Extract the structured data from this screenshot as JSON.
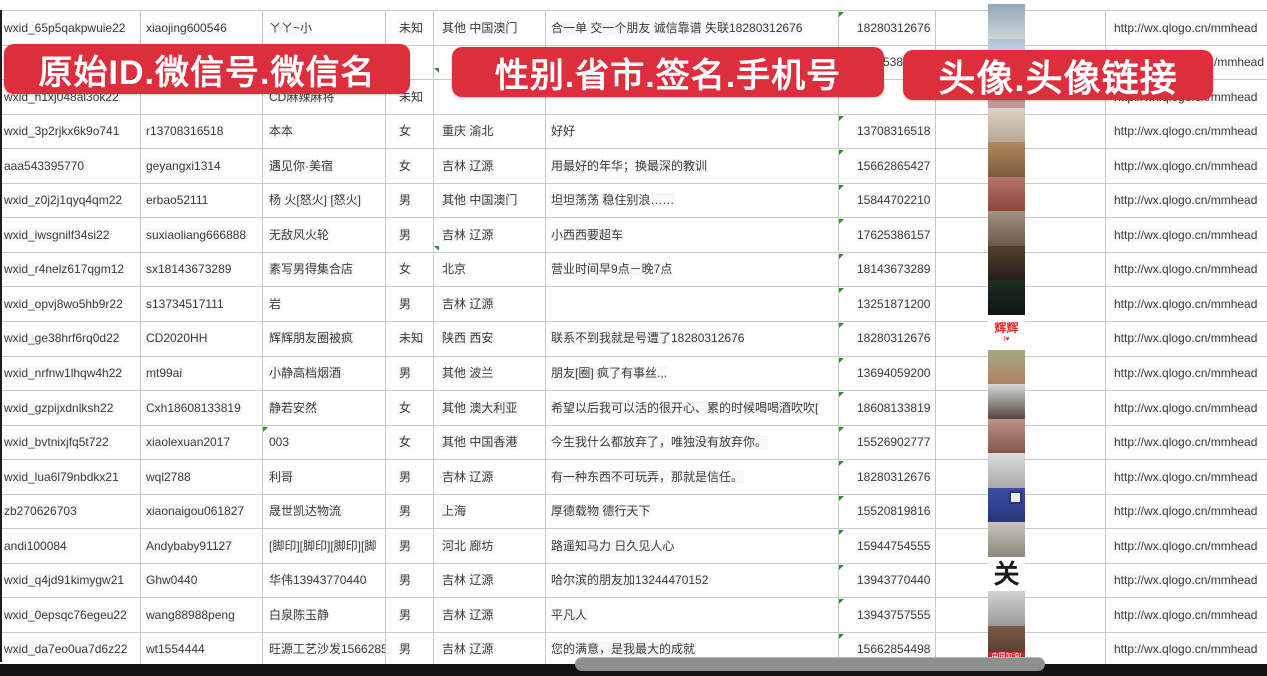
{
  "banners": [
    {
      "text": "原始ID.微信号.微信名"
    },
    {
      "text": "性别.省市.签名.手机号"
    },
    {
      "text": "头像.头像链接"
    }
  ],
  "colors": {
    "banner_red": "#dd2e3e",
    "grid_line": "#c9c9c9",
    "text": "#3a3a3a",
    "indicator_green": "#2e8b2e",
    "scrollbar_track": "#141414",
    "scrollbar_thumb": "#8f8f8f"
  },
  "rows": [
    {
      "original_id": "wxid_65p5qakpwuie22",
      "wechat_id": "xiaojing600546",
      "wechat_name": "ㄚㄚ~小",
      "gender": "未知",
      "region": "其他 中国澳门",
      "signature": "合一单 交一个朋友 诚信靠谱 失联18280312676",
      "phone": "18280312676",
      "phone_tri": true,
      "avatar_link": "http://wx.qlogo.cn/mmhead",
      "avatar": {
        "c1": "#93a7b8",
        "c2": "#cfd5da"
      }
    },
    {
      "original_id": "",
      "wechat_id": "",
      "wechat_name": "",
      "gender": "",
      "region": "",
      "signature": "",
      "phone": "5386",
      "phone_pad": 44,
      "phone_tri": false,
      "avatar_link": "/mmhead",
      "link_pad": 108,
      "avatar": {
        "c1": "#b3c1d8",
        "c2": "#e3e8ef"
      }
    },
    {
      "original_id": "wxid_h1xj048al3ok22",
      "wechat_id": "",
      "wechat_name": "CD麻辣麻将",
      "gender": "未知",
      "region": "",
      "signature": "",
      "phone": "",
      "phone_tri": false,
      "avatar_link": "http://wx.qlogo.cn/mmhead",
      "avatar": {
        "c1": "#d8bdbd",
        "c2": "#bf9494"
      }
    },
    {
      "original_id": "wxid_3p2rjkx6k9o741",
      "wechat_id": "r13708316518",
      "wechat_name": "本本",
      "gender": "女",
      "region": "重庆 渝北",
      "signature": "好好",
      "phone": "13708316518",
      "phone_tri": true,
      "avatar_link": "http://wx.qlogo.cn/mmhead",
      "avatar": {
        "c1": "#d9d2c6",
        "c2": "#b7a896"
      }
    },
    {
      "original_id": "aaa543395770",
      "wechat_id": "geyangxi1314",
      "wechat_name": "遇见你·美宿",
      "gender": "女",
      "region": "吉林 辽源",
      "signature": "用最好的年华；换最深的教训",
      "phone": "15662865427",
      "phone_tri": true,
      "avatar_link": "http://wx.qlogo.cn/mmhead",
      "avatar": {
        "c1": "#b18a5c",
        "c2": "#7d5c3c"
      }
    },
    {
      "original_id": "wxid_z0j2j1qyq4qm22",
      "wechat_id": "erbao52111",
      "wechat_name": "杨 火[怒火] [怒火]",
      "gender": "男",
      "region": "其他 中国澳门",
      "signature": "坦坦荡荡 稳住别浪……",
      "phone": "15844702210",
      "phone_tri": true,
      "avatar_link": "http://wx.qlogo.cn/mmhead",
      "avatar": {
        "c1": "#b5756a",
        "c2": "#8e453c"
      }
    },
    {
      "original_id": "wxid_iwsgnilf34si22",
      "wechat_id": "suxiaoliang666888",
      "wechat_name": "无敌风火轮",
      "gender": "男",
      "region": "吉林 辽源",
      "signature": "小西西要超车",
      "phone": "17625386157",
      "phone_tri": true,
      "avatar_link": "http://wx.qlogo.cn/mmhead",
      "avatar": {
        "c1": "#a29384",
        "c2": "#6b5a4e"
      }
    },
    {
      "original_id": "wxid_r4nelz617qgm12",
      "wechat_id": "sx18143673289",
      "wechat_name": "素写男得集合店",
      "gender": "女",
      "region": "北京",
      "signature": "营业时间早9点－晚7点",
      "phone": "18143673289",
      "phone_tri": true,
      "avatar_link": "http://wx.qlogo.cn/mmhead",
      "avatar": {
        "c1": "#54402f",
        "c2": "#271e19"
      }
    },
    {
      "original_id": "wxid_opvj8wo5hb9r22",
      "wechat_id": "s13734517111",
      "wechat_name": "岩",
      "gender": "男",
      "region": "吉林 辽源",
      "signature": "",
      "phone": "13251871200",
      "phone_tri": true,
      "avatar_link": "http://wx.qlogo.cn/mmhead",
      "avatar": {
        "c1": "#1c2f22",
        "c2": "#0d160f"
      }
    },
    {
      "original_id": "wxid_ge38hrf6rq0d22",
      "wechat_id": "CD2020HH",
      "wechat_name": "辉辉朋友圈被疯",
      "gender": "未知",
      "region": "陕西 西安",
      "signature": "联系不到我就是号遭了18280312676",
      "phone": "18280312676",
      "phone_tri": true,
      "avatar_link": "http://wx.qlogo.cn/mmhead",
      "avatar": {
        "c1": "#ffffff",
        "c2": "#ffffff",
        "label": "辉辉",
        "label_color": "#e02f2f",
        "label_size": 12,
        "sub": "I♥",
        "sub_color": "#e02f2f"
      }
    },
    {
      "original_id": "wxid_nrfnw1lhqw4h22",
      "wechat_id": "mt99ai",
      "wechat_name": "小静高档烟酒",
      "gender": "男",
      "region": "其他 波兰",
      "signature": "朋友[圈] 疯了有事丝.,.",
      "phone": "13694059200",
      "phone_tri": true,
      "avatar_link": "http://wx.qlogo.cn/mmhead",
      "avatar": {
        "c1": "#a3a87e",
        "c2": "#b08262"
      }
    },
    {
      "original_id": "wxid_gzpijxdnlksh22",
      "wechat_id": "Cxh18608133819",
      "wechat_name": "静若安然",
      "gender": "女",
      "region": "其他 澳大利亚",
      "signature": "希望以后我可以活的很开心、累的时候喝喝酒吹吹[",
      "phone": "18608133819",
      "phone_tri": true,
      "avatar_link": "http://wx.qlogo.cn/mmhead",
      "avatar": {
        "c1": "#d6d9db",
        "c2": "#564741"
      }
    },
    {
      "original_id": "wxid_bvtnixjfq5t722",
      "wechat_id": "xiaolexuan2017",
      "wechat_name": "003",
      "gender": "女",
      "region": "其他 中国香港",
      "signature": "今生我什么都放弃了，唯独没有放弃你。",
      "phone": "15526902777",
      "phone_tri": true,
      "name_tri": true,
      "avatar_link": "http://wx.qlogo.cn/mmhead",
      "avatar": {
        "c1": "#bb9288",
        "c2": "#84544a"
      }
    },
    {
      "original_id": "wxid_lua6l79nbdkx21",
      "wechat_id": "wql2788",
      "wechat_name": "利哥",
      "gender": "男",
      "region": "吉林 辽源",
      "signature": "有一种东西不可玩弄，那就是信任。",
      "phone": "18280312676",
      "phone_tri": true,
      "avatar_link": "http://wx.qlogo.cn/mmhead",
      "avatar": {
        "c1": "#dddddd",
        "c2": "#a8a8a8"
      }
    },
    {
      "original_id": "zb270626703",
      "wechat_id": "xiaonaigou061827",
      "wechat_name": "晟世凯达物流",
      "gender": "男",
      "region": "上海",
      "signature": "厚德载物 德行天下",
      "phone": "15520819816",
      "phone_tri": true,
      "avatar_link": "http://wx.qlogo.cn/mmhead",
      "avatar": {
        "c1": "#3c4da5",
        "c2": "#283578",
        "qr": true
      }
    },
    {
      "original_id": "andi100084",
      "wechat_id": "Andybaby91127",
      "wechat_name": "[脚印][脚印][脚印][脚",
      "gender": "男",
      "region": "河北 廊坊",
      "signature": "路遥知马力 日久见人心",
      "phone": "15944754555",
      "phone_tri": true,
      "avatar_link": "http://wx.qlogo.cn/mmhead",
      "avatar": {
        "c1": "#c9c4ba",
        "c2": "#8e887e"
      }
    },
    {
      "original_id": "wxid_q4jd91kimygw21",
      "wechat_id": "Ghw0440",
      "wechat_name": "华伟13943770440",
      "gender": "男",
      "region": "吉林 辽源",
      "signature": "哈尔滨的朋友加13244470152",
      "phone": "13943770440",
      "phone_tri": true,
      "avatar_link": "http://wx.qlogo.cn/mmhead",
      "avatar": {
        "c1": "#ffffff",
        "c2": "#ffffff",
        "label": "关",
        "label_color": "#1a1a1a",
        "label_size": 26
      }
    },
    {
      "original_id": "wxid_0epsqc76egeu22",
      "wechat_id": "wang88988peng",
      "wechat_name": "白泉陈玉静",
      "gender": "男",
      "region": "吉林 辽源",
      "signature": "平凡人",
      "phone": "13943757555",
      "phone_tri": true,
      "avatar_link": "http://wx.qlogo.cn/mmhead",
      "avatar": {
        "c1": "#d2d2d2",
        "c2": "#999999"
      }
    },
    {
      "original_id": "wxid_da7eo0ua7d6z22",
      "wechat_id": "wt1554444",
      "wechat_name": "旺源工艺沙发15662854",
      "gender": "男",
      "region": "吉林 辽源",
      "signature": "您的满意，是我最大的成就",
      "phone": "15662854498",
      "phone_tri": true,
      "avatar_link": "http://wx.qlogo.cn/mmhead",
      "avatar": {
        "c1": "#7d5b46",
        "c2": "#503428",
        "strip": "中国加油!",
        "strip_bg": "#c4262a"
      }
    }
  ],
  "partial_row": {
    "avatar": {
      "c1": "#c8d5e0",
      "c2": "#edf1f4"
    }
  }
}
